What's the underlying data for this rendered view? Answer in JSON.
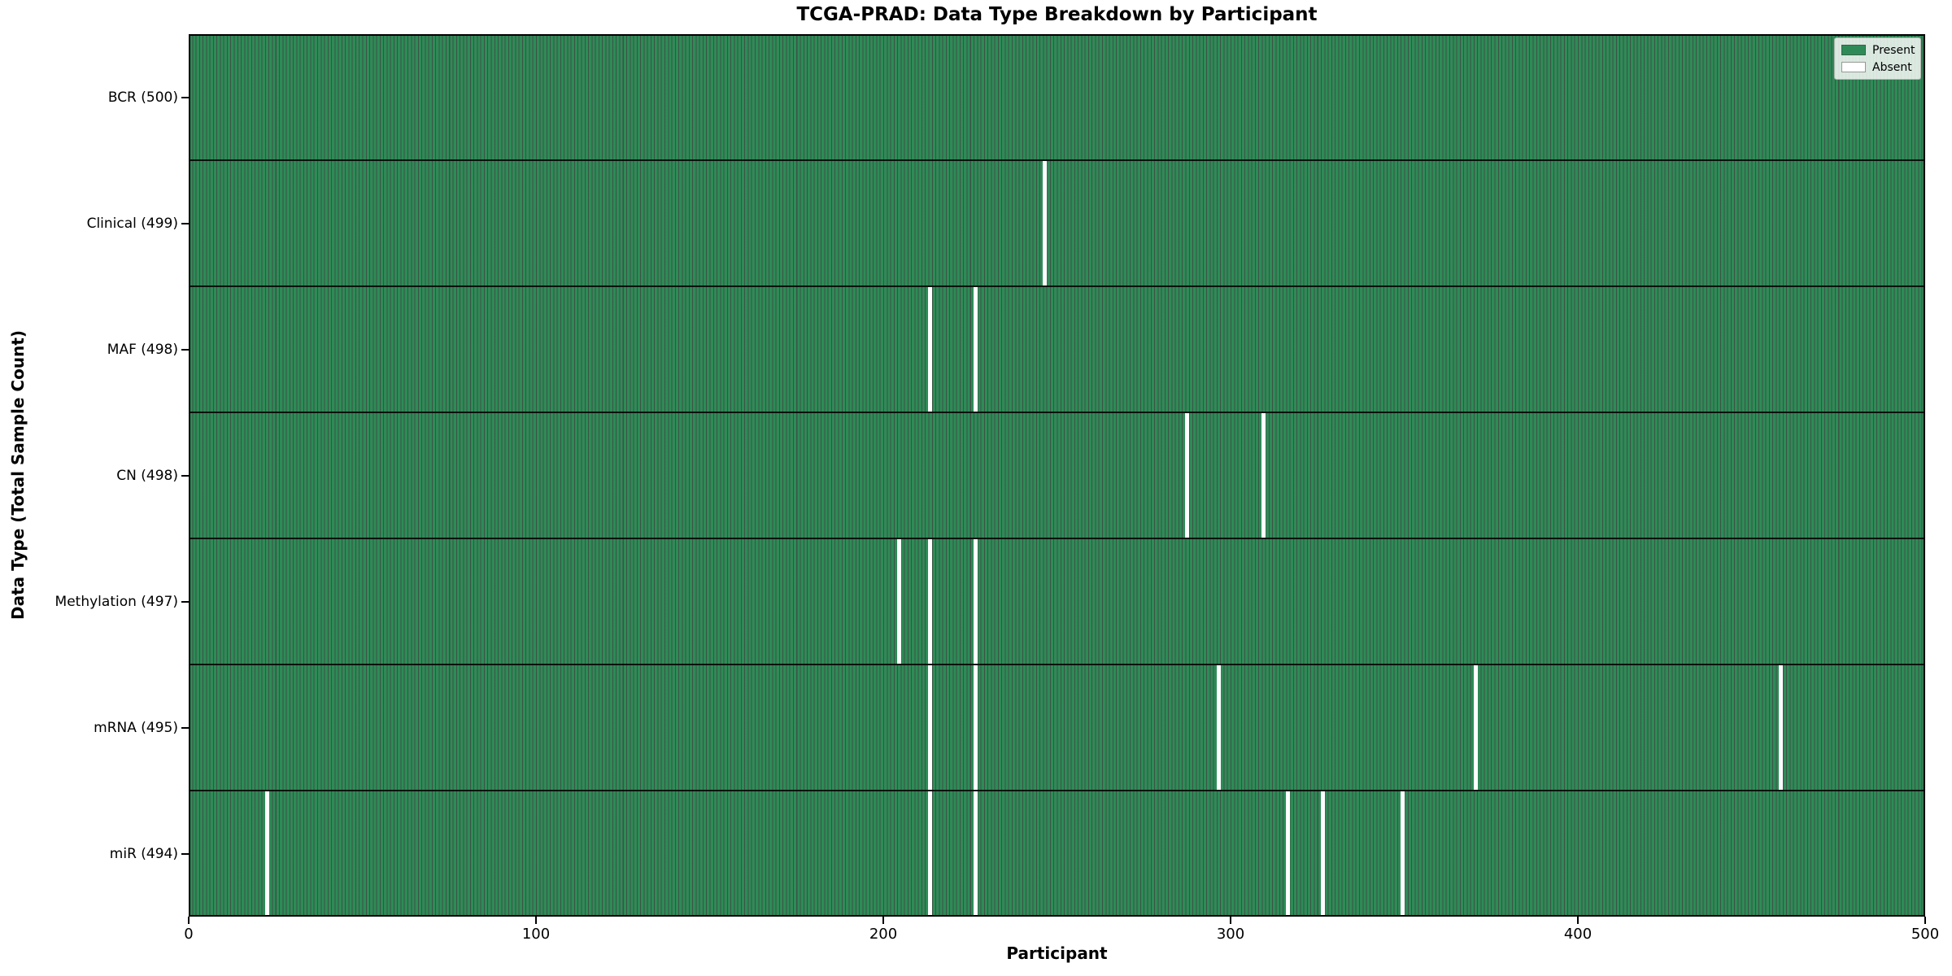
{
  "chart_data": {
    "type": "heatmap",
    "title": "TCGA-PRAD: Data Type Breakdown by Participant",
    "xlabel": "Participant",
    "ylabel": "Data Type (Total Sample Count)",
    "xlim": [
      0,
      500
    ],
    "x_ticks": [
      0,
      100,
      200,
      300,
      400,
      500
    ],
    "n_participants": 500,
    "grid": false,
    "legend_position": "upper right",
    "legend": [
      {
        "label": "Present",
        "color": "#2e8b57"
      },
      {
        "label": "Absent",
        "color": "#ffffff"
      }
    ],
    "rows": [
      {
        "label": "BCR (500)",
        "data_type": "BCR",
        "total_samples": 500,
        "absent_participants": []
      },
      {
        "label": "Clinical (499)",
        "data_type": "Clinical",
        "total_samples": 499,
        "absent_participants": [
          246
        ]
      },
      {
        "label": "MAF (498)",
        "data_type": "MAF",
        "total_samples": 498,
        "absent_participants": [
          213,
          226
        ]
      },
      {
        "label": "CN (498)",
        "data_type": "CN",
        "total_samples": 498,
        "absent_participants": [
          287,
          309
        ]
      },
      {
        "label": "Methylation (497)",
        "data_type": "Methylation",
        "total_samples": 497,
        "absent_participants": [
          204,
          213,
          226
        ]
      },
      {
        "label": "mRNA (495)",
        "data_type": "mRNA",
        "total_samples": 495,
        "absent_participants": [
          213,
          226,
          296,
          370,
          458
        ]
      },
      {
        "label": "miR (494)",
        "data_type": "miR",
        "total_samples": 494,
        "absent_participants": [
          22,
          213,
          226,
          316,
          326,
          349
        ]
      }
    ],
    "colors": {
      "present": "#2e8b57",
      "absent": "#ffffff",
      "bar_edge": "rgba(13, 38, 24, 0.8)",
      "spine": "#000000"
    }
  }
}
